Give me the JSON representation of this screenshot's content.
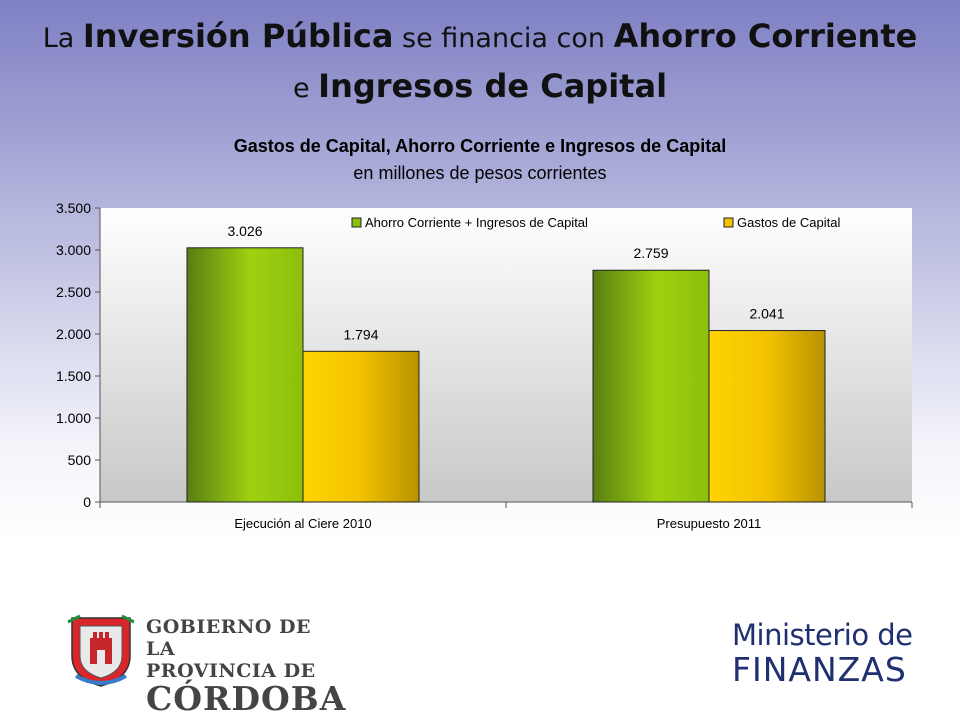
{
  "slide": {
    "title_parts": [
      "La ",
      "Inversión Pública",
      " se financia con ",
      "Ahorro Corriente"
    ],
    "title_line2_parts": [
      "e ",
      "Ingresos de Capital"
    ]
  },
  "chart_data": {
    "type": "bar",
    "title": "Gastos de Capital, Ahorro Corriente e Ingresos de Capital",
    "subtitle": "en millones de pesos corrientes",
    "categories": [
      "Ejecución al Ciere 2010",
      "Presupuesto 2011"
    ],
    "series": [
      {
        "name": "Ahorro Corriente + Ingresos de Capital",
        "values": [
          3026,
          2759
        ],
        "labels": [
          "3.026",
          "2.759"
        ],
        "color": "#8bbf0d"
      },
      {
        "name": "Gastos de Capital",
        "values": [
          1794,
          2041
        ],
        "labels": [
          "1.794",
          "2.041"
        ],
        "color": "#f2c200"
      }
    ],
    "ylim": [
      0,
      3500
    ],
    "yticks": [
      0,
      500,
      1000,
      1500,
      2000,
      2500,
      3000,
      3500
    ],
    "ytick_labels": [
      "0",
      "500",
      "1.000",
      "1.500",
      "2.000",
      "2.500",
      "3.000",
      "3.500"
    ],
    "grid": false,
    "legend_position": "top"
  },
  "logos": {
    "gobierno": {
      "line1": "GOBIERNO DE LA",
      "line2": "PROVINCIA DE",
      "line3": "CÓRDOBA"
    },
    "ministerio": {
      "line1": "Ministerio de",
      "line2": "FINANZAS"
    }
  }
}
